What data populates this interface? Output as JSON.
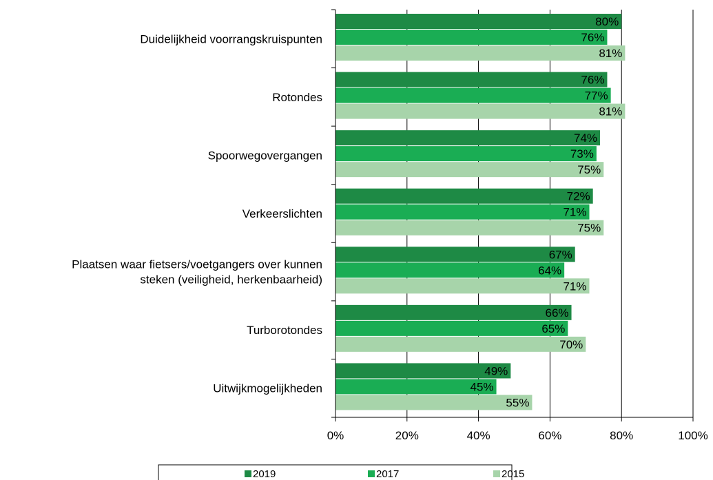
{
  "chart_data": {
    "type": "bar",
    "orientation": "horizontal",
    "categories": [
      "Duidelijkheid voorrangskruispunten",
      "Rotondes",
      "Spoorwegovergangen",
      "Verkeerslichten",
      "Plaatsen waar fietsers/voetgangers over kunnen steken (veiligheid, herkenbaarheid)",
      "Turborotondes",
      "Uitwijkmogelijkheden"
    ],
    "category_lines": [
      [
        "Duidelijkheid voorrangskruispunten"
      ],
      [
        "Rotondes"
      ],
      [
        "Spoorwegovergangen"
      ],
      [
        "Verkeerslichten"
      ],
      [
        "Plaatsen waar fietsers/voetgangers over kunnen",
        "steken (veiligheid, herkenbaarheid)"
      ],
      [
        "Turborotondes"
      ],
      [
        "Uitwijkmogelijkheden"
      ]
    ],
    "series": [
      {
        "name": "2019",
        "color": "#1e8a45",
        "values": [
          80,
          76,
          74,
          72,
          67,
          66,
          49
        ],
        "labels": [
          "80%",
          "76%",
          "74%",
          "72%",
          "67%",
          "66%",
          "49%"
        ]
      },
      {
        "name": "2017",
        "color": "#1aad54",
        "values": [
          76,
          77,
          73,
          71,
          64,
          65,
          45
        ],
        "labels": [
          "76%",
          "77%",
          "73%",
          "71%",
          "64%",
          "65%",
          "45%"
        ]
      },
      {
        "name": "2015",
        "color": "#a7d4aa",
        "values": [
          81,
          81,
          75,
          75,
          71,
          70,
          55
        ],
        "labels": [
          "81%",
          "81%",
          "75%",
          "75%",
          "71%",
          "70%",
          "55%"
        ]
      }
    ],
    "xlim": [
      0,
      100
    ],
    "x_ticks": [
      0,
      20,
      40,
      60,
      80,
      100
    ],
    "x_tick_labels": [
      "0%",
      "20%",
      "40%",
      "60%",
      "80%",
      "100%"
    ],
    "grid": "vertical",
    "legend": "bottom",
    "title": "",
    "xlabel": "",
    "ylabel": ""
  }
}
